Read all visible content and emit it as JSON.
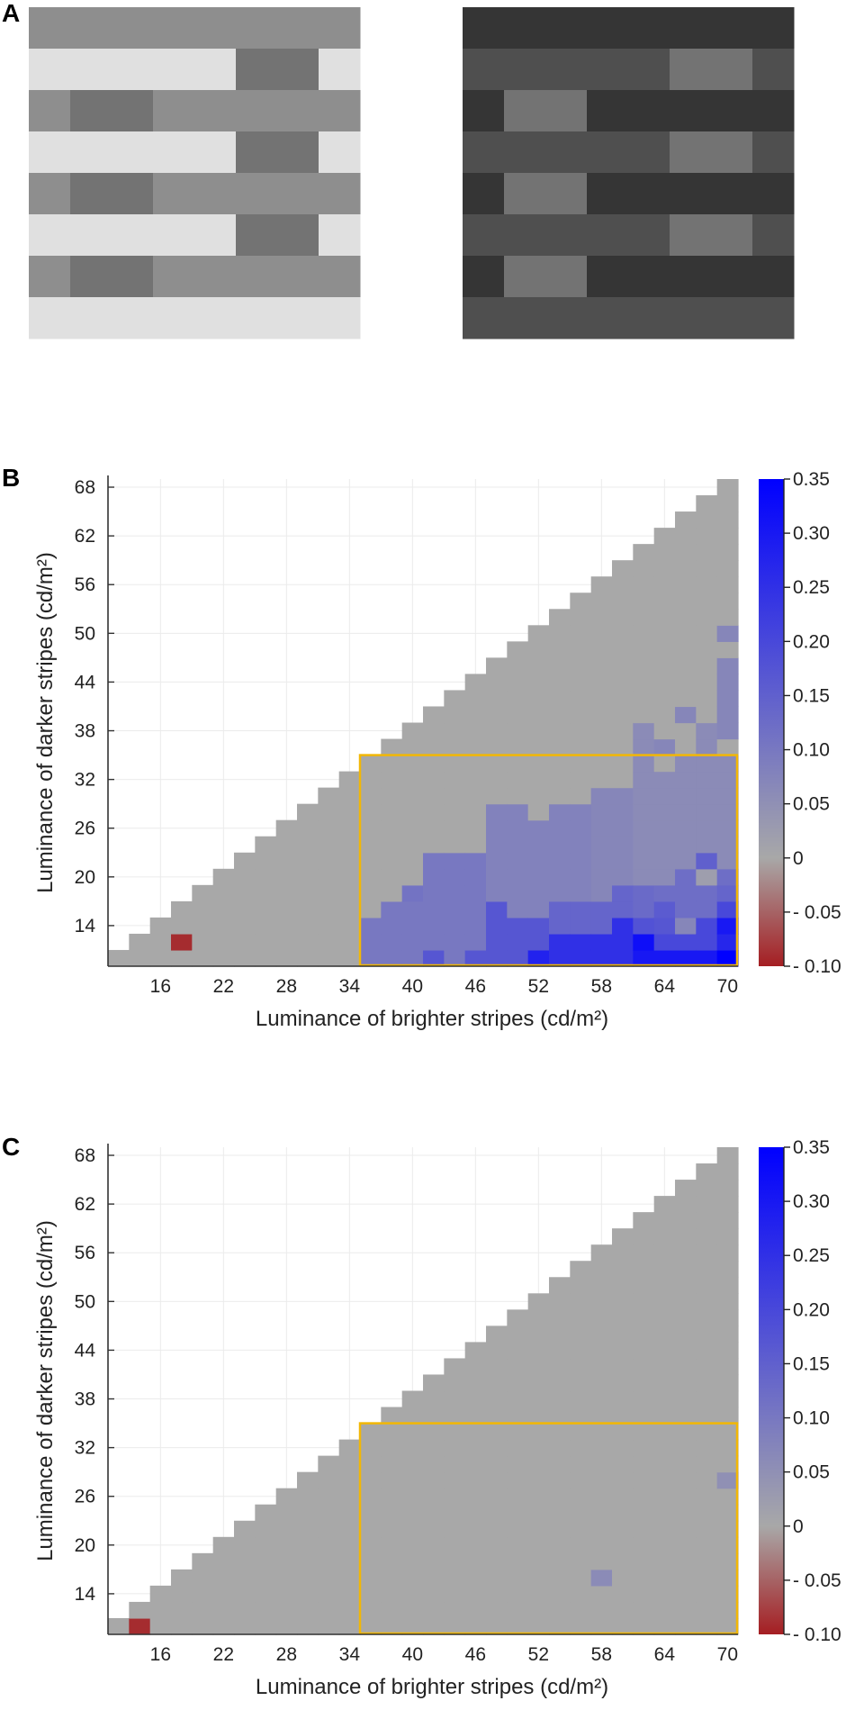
{
  "panels": {
    "a_label": "A",
    "b_label": "B",
    "c_label": "C"
  },
  "stimuli": {
    "pattern_rows": [
      "MMMMMMMM",
      "LLLLLDDL",
      "MDDMMMMM",
      "LLLLLDDL",
      "MDDMMMMM",
      "LLLLLDDL",
      "MDDMMMMM",
      "LLLLLLLL"
    ],
    "bright_version": {
      "L": "#e0e0e0",
      "M": "#8e8e8e",
      "D": "#737373"
    },
    "dark_version": {
      "L": "#4f4f4f",
      "M": "#353535",
      "D": "#737373"
    }
  },
  "colors": {
    "zero": "#a8a8a8",
    "max": "#0000ff",
    "min": "#a51e22",
    "highlight_box": "#f2b705",
    "grid": "#ebebeb",
    "axis": "#333333"
  },
  "chart_data": [
    {
      "type": "heatmap",
      "panel": "B",
      "xlabel": "Luminance of brighter stripes (cd/m²)",
      "ylabel": "Luminance of darker stripes (cd/m²)",
      "x_values": [
        12,
        14,
        16,
        18,
        20,
        22,
        24,
        26,
        28,
        30,
        32,
        34,
        36,
        38,
        40,
        42,
        44,
        46,
        48,
        50,
        52,
        54,
        56,
        58,
        60,
        62,
        64,
        66,
        68,
        70
      ],
      "y_values": [
        10,
        12,
        14,
        16,
        18,
        20,
        22,
        24,
        26,
        28,
        30,
        32,
        34,
        36,
        38,
        40,
        42,
        44,
        46,
        48,
        50,
        52,
        54,
        56,
        58,
        60,
        62,
        64,
        66,
        68
      ],
      "valid_rule": "darker <= brighter - 2",
      "default_value": 0,
      "xlim": [
        11,
        71
      ],
      "ylim": [
        9,
        69
      ],
      "xticks": [
        "16",
        "22",
        "28",
        "34",
        "40",
        "46",
        "52",
        "58",
        "64",
        "70"
      ],
      "yticks": [
        "14",
        "20",
        "26",
        "32",
        "38",
        "44",
        "50",
        "56",
        "62",
        "68"
      ],
      "highlight_box": {
        "x": [
          35,
          71
        ],
        "y": [
          9,
          35
        ]
      },
      "colorbar": {
        "range": [
          -0.1,
          0.35
        ],
        "ticks": [
          0.35,
          0.3,
          0.25,
          0.2,
          0.15,
          0.1,
          0.05,
          0,
          -0.05,
          -0.1
        ],
        "tick_labels": [
          "0.35",
          "0.30",
          "0.25",
          "0.20",
          "0.15",
          "0.10",
          "0.05",
          "0",
          "- 0.05",
          "- 0.10"
        ]
      },
      "nonzero": [
        [
          18,
          12,
          -0.09
        ],
        [
          36,
          10,
          0.1
        ],
        [
          36,
          12,
          0.1
        ],
        [
          36,
          14,
          0.1
        ],
        [
          38,
          10,
          0.1
        ],
        [
          38,
          12,
          0.1
        ],
        [
          38,
          14,
          0.1
        ],
        [
          38,
          16,
          0.1
        ],
        [
          40,
          10,
          0.1
        ],
        [
          40,
          12,
          0.1
        ],
        [
          40,
          14,
          0.1
        ],
        [
          40,
          16,
          0.1
        ],
        [
          40,
          18,
          0.11
        ],
        [
          42,
          10,
          0.17
        ],
        [
          42,
          12,
          0.1
        ],
        [
          42,
          14,
          0.1
        ],
        [
          42,
          16,
          0.1
        ],
        [
          42,
          18,
          0.1
        ],
        [
          42,
          20,
          0.1
        ],
        [
          42,
          22,
          0.1
        ],
        [
          44,
          10,
          0.1
        ],
        [
          44,
          12,
          0.1
        ],
        [
          44,
          14,
          0.1
        ],
        [
          44,
          16,
          0.1
        ],
        [
          44,
          18,
          0.1
        ],
        [
          44,
          20,
          0.1
        ],
        [
          44,
          22,
          0.1
        ],
        [
          46,
          10,
          0.17
        ],
        [
          46,
          12,
          0.1
        ],
        [
          46,
          14,
          0.1
        ],
        [
          46,
          16,
          0.1
        ],
        [
          46,
          18,
          0.1
        ],
        [
          46,
          20,
          0.1
        ],
        [
          46,
          22,
          0.1
        ],
        [
          48,
          10,
          0.17
        ],
        [
          48,
          12,
          0.17
        ],
        [
          48,
          14,
          0.17
        ],
        [
          48,
          16,
          0.17
        ],
        [
          48,
          18,
          0.08
        ],
        [
          48,
          20,
          0.08
        ],
        [
          48,
          22,
          0.08
        ],
        [
          48,
          24,
          0.08
        ],
        [
          48,
          26,
          0.08
        ],
        [
          48,
          28,
          0.08
        ],
        [
          50,
          10,
          0.17
        ],
        [
          50,
          12,
          0.17
        ],
        [
          50,
          14,
          0.17
        ],
        [
          50,
          16,
          0.08
        ],
        [
          50,
          18,
          0.08
        ],
        [
          50,
          20,
          0.08
        ],
        [
          50,
          22,
          0.08
        ],
        [
          50,
          24,
          0.08
        ],
        [
          50,
          26,
          0.08
        ],
        [
          50,
          28,
          0.08
        ],
        [
          52,
          10,
          0.28
        ],
        [
          52,
          12,
          0.17
        ],
        [
          52,
          14,
          0.17
        ],
        [
          52,
          16,
          0.08
        ],
        [
          52,
          18,
          0.08
        ],
        [
          52,
          20,
          0.08
        ],
        [
          52,
          22,
          0.08
        ],
        [
          52,
          24,
          0.08
        ],
        [
          52,
          26,
          0.08
        ],
        [
          54,
          10,
          0.25
        ],
        [
          54,
          12,
          0.25
        ],
        [
          54,
          14,
          0.14
        ],
        [
          54,
          16,
          0.14
        ],
        [
          54,
          18,
          0.08
        ],
        [
          54,
          20,
          0.08
        ],
        [
          54,
          22,
          0.08
        ],
        [
          54,
          24,
          0.08
        ],
        [
          54,
          26,
          0.08
        ],
        [
          54,
          28,
          0.08
        ],
        [
          56,
          10,
          0.25
        ],
        [
          56,
          12,
          0.25
        ],
        [
          56,
          14,
          0.14
        ],
        [
          56,
          16,
          0.14
        ],
        [
          56,
          18,
          0.08
        ],
        [
          56,
          20,
          0.08
        ],
        [
          56,
          22,
          0.08
        ],
        [
          56,
          24,
          0.08
        ],
        [
          56,
          26,
          0.08
        ],
        [
          56,
          28,
          0.08
        ],
        [
          58,
          10,
          0.25
        ],
        [
          58,
          12,
          0.25
        ],
        [
          58,
          14,
          0.14
        ],
        [
          58,
          16,
          0.14
        ],
        [
          58,
          18,
          0.07
        ],
        [
          58,
          20,
          0.07
        ],
        [
          58,
          22,
          0.07
        ],
        [
          58,
          24,
          0.07
        ],
        [
          58,
          26,
          0.07
        ],
        [
          58,
          28,
          0.07
        ],
        [
          58,
          30,
          0.07
        ],
        [
          60,
          10,
          0.25
        ],
        [
          60,
          12,
          0.25
        ],
        [
          60,
          14,
          0.25
        ],
        [
          60,
          16,
          0.14
        ],
        [
          60,
          18,
          0.14
        ],
        [
          60,
          20,
          0.07
        ],
        [
          60,
          22,
          0.07
        ],
        [
          60,
          24,
          0.07
        ],
        [
          60,
          26,
          0.07
        ],
        [
          60,
          28,
          0.07
        ],
        [
          60,
          30,
          0.07
        ],
        [
          62,
          10,
          0.3
        ],
        [
          62,
          12,
          0.32
        ],
        [
          62,
          14,
          0.18
        ],
        [
          62,
          16,
          0.13
        ],
        [
          62,
          18,
          0.13
        ],
        [
          62,
          20,
          0.06
        ],
        [
          62,
          22,
          0.06
        ],
        [
          62,
          24,
          0.06
        ],
        [
          62,
          26,
          0.06
        ],
        [
          62,
          28,
          0.06
        ],
        [
          62,
          30,
          0.06
        ],
        [
          62,
          32,
          0.06
        ],
        [
          62,
          34,
          0.06
        ],
        [
          62,
          36,
          0.06
        ],
        [
          62,
          38,
          0.06
        ],
        [
          64,
          10,
          0.3
        ],
        [
          64,
          12,
          0.2
        ],
        [
          64,
          14,
          0.17
        ],
        [
          64,
          16,
          0.16
        ],
        [
          64,
          18,
          0.12
        ],
        [
          64,
          20,
          0.06
        ],
        [
          64,
          22,
          0.06
        ],
        [
          64,
          24,
          0.06
        ],
        [
          64,
          26,
          0.06
        ],
        [
          64,
          28,
          0.06
        ],
        [
          64,
          30,
          0.06
        ],
        [
          64,
          32,
          0.06
        ],
        [
          64,
          36,
          0.07
        ],
        [
          66,
          10,
          0.3
        ],
        [
          66,
          12,
          0.2
        ],
        [
          66,
          14,
          0.07
        ],
        [
          66,
          16,
          0.12
        ],
        [
          66,
          18,
          0.12
        ],
        [
          66,
          20,
          0.12
        ],
        [
          66,
          22,
          0.06
        ],
        [
          66,
          24,
          0.06
        ],
        [
          66,
          26,
          0.06
        ],
        [
          66,
          28,
          0.06
        ],
        [
          66,
          30,
          0.06
        ],
        [
          66,
          32,
          0.06
        ],
        [
          66,
          34,
          0.06
        ],
        [
          66,
          40,
          0.07
        ],
        [
          68,
          10,
          0.3
        ],
        [
          68,
          12,
          0.2
        ],
        [
          68,
          14,
          0.2
        ],
        [
          68,
          16,
          0.12
        ],
        [
          68,
          18,
          0.12
        ],
        [
          68,
          20,
          0.02
        ],
        [
          68,
          22,
          0.15
        ],
        [
          68,
          24,
          0.06
        ],
        [
          68,
          26,
          0.06
        ],
        [
          68,
          28,
          0.06
        ],
        [
          68,
          30,
          0.06
        ],
        [
          68,
          32,
          0.06
        ],
        [
          68,
          34,
          0.06
        ],
        [
          68,
          36,
          0.06
        ],
        [
          68,
          38,
          0.06
        ],
        [
          70,
          10,
          0.35
        ],
        [
          70,
          12,
          0.27
        ],
        [
          70,
          14,
          0.3
        ],
        [
          70,
          16,
          0.2
        ],
        [
          70,
          18,
          0.14
        ],
        [
          70,
          20,
          0.12
        ],
        [
          70,
          22,
          0.06
        ],
        [
          70,
          24,
          0.06
        ],
        [
          70,
          26,
          0.06
        ],
        [
          70,
          28,
          0.06
        ],
        [
          70,
          30,
          0.06
        ],
        [
          70,
          32,
          0.06
        ],
        [
          70,
          34,
          0.06
        ],
        [
          70,
          38,
          0.07
        ],
        [
          70,
          40,
          0.07
        ],
        [
          70,
          42,
          0.07
        ],
        [
          70,
          44,
          0.07
        ],
        [
          70,
          46,
          0.07
        ],
        [
          70,
          50,
          0.07
        ]
      ]
    },
    {
      "type": "heatmap",
      "panel": "C",
      "xlabel": "Luminance of brighter stripes (cd/m²)",
      "ylabel": "Luminance of darker stripes (cd/m²)",
      "x_values": [
        12,
        14,
        16,
        18,
        20,
        22,
        24,
        26,
        28,
        30,
        32,
        34,
        36,
        38,
        40,
        42,
        44,
        46,
        48,
        50,
        52,
        54,
        56,
        58,
        60,
        62,
        64,
        66,
        68,
        70
      ],
      "y_values": [
        10,
        12,
        14,
        16,
        18,
        20,
        22,
        24,
        26,
        28,
        30,
        32,
        34,
        36,
        38,
        40,
        42,
        44,
        46,
        48,
        50,
        52,
        54,
        56,
        58,
        60,
        62,
        64,
        66,
        68
      ],
      "valid_rule": "darker <= brighter - 2",
      "default_value": 0,
      "xlim": [
        11,
        71
      ],
      "ylim": [
        9,
        69
      ],
      "xticks": [
        "16",
        "22",
        "28",
        "34",
        "40",
        "46",
        "52",
        "58",
        "64",
        "70"
      ],
      "yticks": [
        "14",
        "20",
        "26",
        "32",
        "38",
        "44",
        "50",
        "56",
        "62",
        "68"
      ],
      "highlight_box": {
        "x": [
          35,
          71
        ],
        "y": [
          9,
          35
        ]
      },
      "colorbar": {
        "range": [
          -0.1,
          0.35
        ],
        "ticks": [
          0.35,
          0.3,
          0.25,
          0.2,
          0.15,
          0.1,
          0.05,
          0,
          -0.05,
          -0.1
        ],
        "tick_labels": [
          "0.35",
          "0.30",
          "0.25",
          "0.20",
          "0.15",
          "0.10",
          "0.05",
          "0",
          "- 0.05",
          "- 0.10"
        ]
      },
      "nonzero": [
        [
          14,
          10,
          -0.09
        ],
        [
          58,
          16,
          0.06
        ],
        [
          70,
          28,
          0.05
        ]
      ]
    }
  ]
}
